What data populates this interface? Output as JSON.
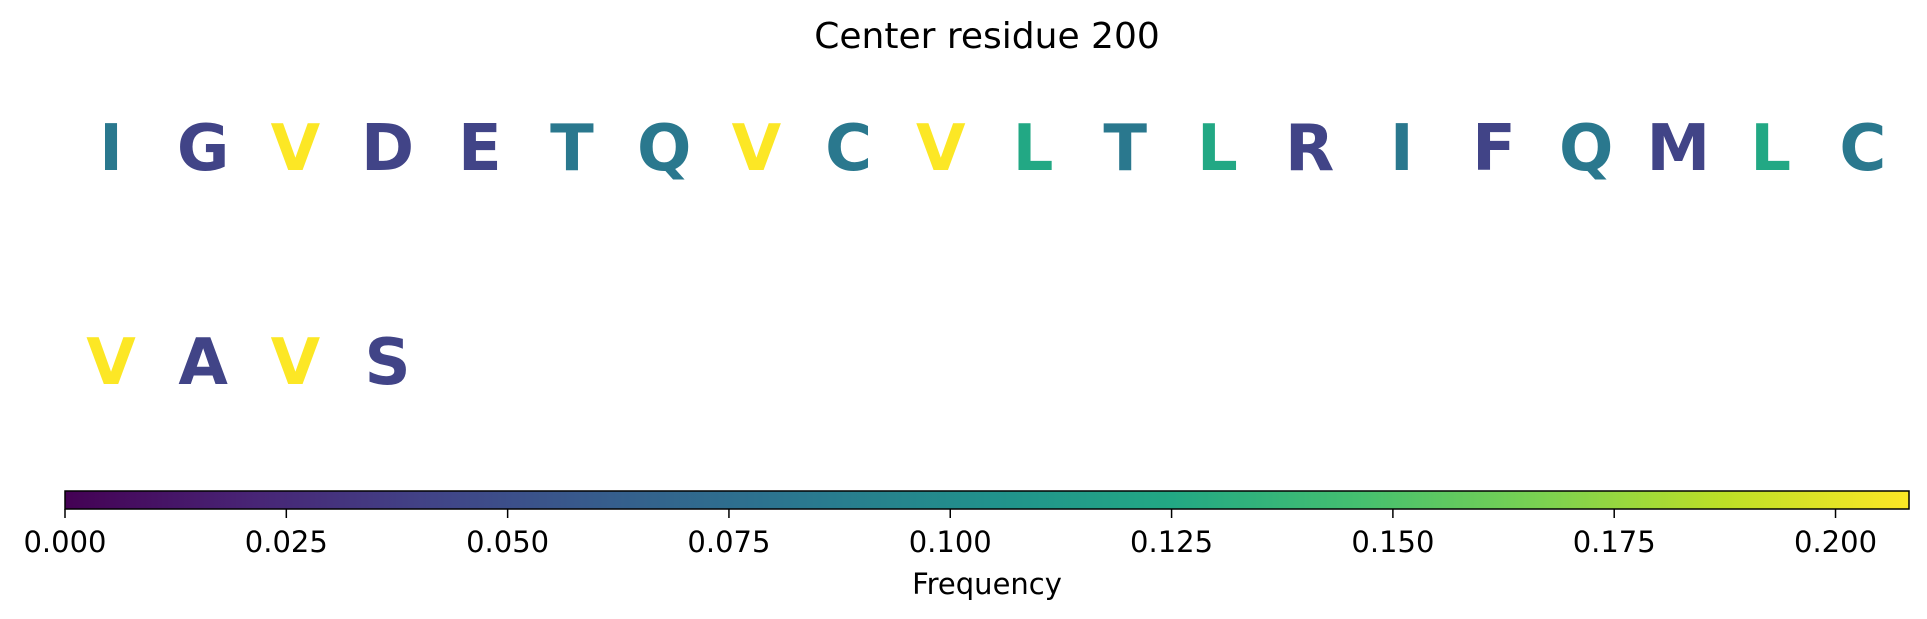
{
  "chart_data": {
    "type": "sequence-logo",
    "title": "Center residue 200",
    "residues": [
      {
        "letter": "I",
        "frequency": 0.083
      },
      {
        "letter": "G",
        "frequency": 0.042
      },
      {
        "letter": "V",
        "frequency": 0.208
      },
      {
        "letter": "D",
        "frequency": 0.042
      },
      {
        "letter": "E",
        "frequency": 0.042
      },
      {
        "letter": "T",
        "frequency": 0.083
      },
      {
        "letter": "Q",
        "frequency": 0.083
      },
      {
        "letter": "V",
        "frequency": 0.208
      },
      {
        "letter": "C",
        "frequency": 0.083
      },
      {
        "letter": "V",
        "frequency": 0.208
      },
      {
        "letter": "L",
        "frequency": 0.125
      },
      {
        "letter": "T",
        "frequency": 0.083
      },
      {
        "letter": "L",
        "frequency": 0.125
      },
      {
        "letter": "R",
        "frequency": 0.042
      },
      {
        "letter": "I",
        "frequency": 0.083
      },
      {
        "letter": "F",
        "frequency": 0.042
      },
      {
        "letter": "Q",
        "frequency": 0.083
      },
      {
        "letter": "M",
        "frequency": 0.042
      },
      {
        "letter": "L",
        "frequency": 0.125
      },
      {
        "letter": "C",
        "frequency": 0.083
      },
      {
        "letter": "V",
        "frequency": 0.208
      },
      {
        "letter": "A",
        "frequency": 0.042
      },
      {
        "letter": "V",
        "frequency": 0.208
      },
      {
        "letter": "S",
        "frequency": 0.042
      }
    ],
    "residues_per_row": 20,
    "colormap": "viridis",
    "colorbar": {
      "label": "Frequency",
      "range": [
        0,
        0.2083
      ],
      "ticks": [
        0,
        0.025,
        0.05,
        0.075,
        0.1,
        0.125,
        0.15,
        0.175,
        0.2
      ],
      "tick_labels": [
        "0.000",
        "0.025",
        "0.050",
        "0.075",
        "0.100",
        "0.125",
        "0.150",
        "0.175",
        "0.200"
      ],
      "orientation": "horizontal",
      "placement": "bottom"
    }
  }
}
